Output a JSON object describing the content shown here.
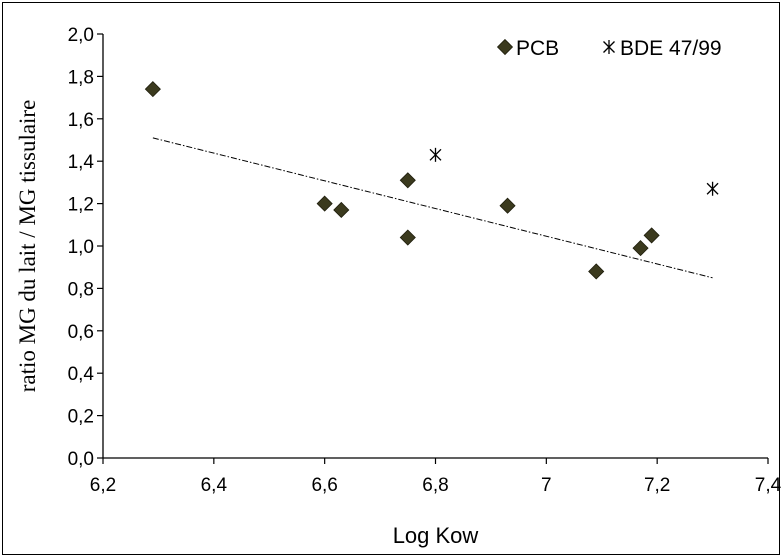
{
  "chart_data": {
    "type": "scatter",
    "xlabel": "Log Kow",
    "ylabel": "ratio MG du lait / MG tissulaire",
    "xlim": [
      6.2,
      7.4
    ],
    "ylim": [
      0.0,
      2.0
    ],
    "x_ticks": [
      "6,2",
      "6,4",
      "6,6",
      "6,8",
      "7",
      "7,2",
      "7,4"
    ],
    "y_ticks": [
      "0,0",
      "0,2",
      "0,4",
      "0,6",
      "0,8",
      "1,0",
      "1,2",
      "1,4",
      "1,6",
      "1,8",
      "2,0"
    ],
    "x_tick_values": [
      6.2,
      6.4,
      6.6,
      6.8,
      7.0,
      7.2,
      7.4
    ],
    "y_tick_values": [
      0.0,
      0.2,
      0.4,
      0.6,
      0.8,
      1.0,
      1.2,
      1.4,
      1.6,
      1.8,
      2.0
    ],
    "series": [
      {
        "name": "PCB",
        "marker": "diamond",
        "color": "#3b3a1e",
        "points": [
          {
            "x": 6.29,
            "y": 1.74
          },
          {
            "x": 6.6,
            "y": 1.2
          },
          {
            "x": 6.63,
            "y": 1.17
          },
          {
            "x": 6.75,
            "y": 1.31
          },
          {
            "x": 6.75,
            "y": 1.04
          },
          {
            "x": 6.93,
            "y": 1.19
          },
          {
            "x": 7.09,
            "y": 0.88
          },
          {
            "x": 7.17,
            "y": 0.99
          },
          {
            "x": 7.19,
            "y": 1.05
          }
        ]
      },
      {
        "name": "BDE 47/99",
        "marker": "star",
        "color": "#000000",
        "points": [
          {
            "x": 6.8,
            "y": 1.43
          },
          {
            "x": 7.3,
            "y": 1.27
          }
        ]
      }
    ],
    "trendline": {
      "style": "dash-dot",
      "color": "#000000",
      "points": [
        {
          "x": 6.29,
          "y": 1.51
        },
        {
          "x": 7.3,
          "y": 0.85
        }
      ]
    },
    "legend": {
      "placement": "top-right"
    },
    "grid": false
  }
}
